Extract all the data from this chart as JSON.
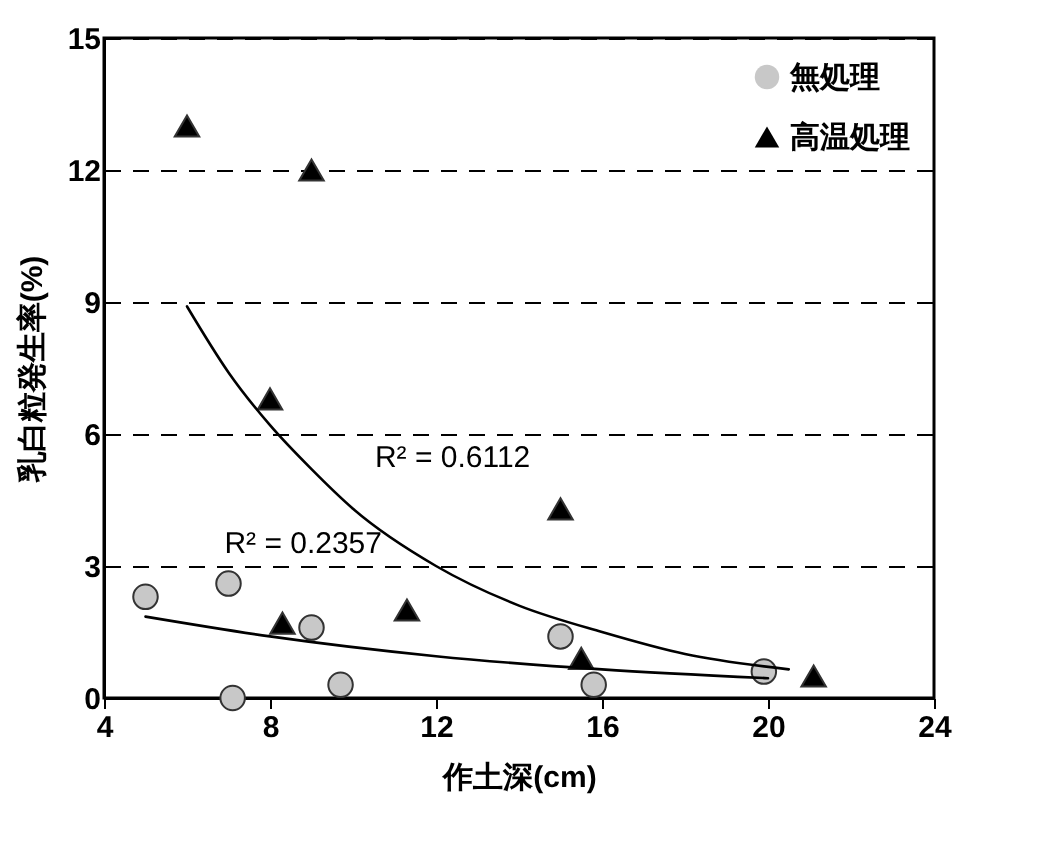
{
  "chart_data": {
    "type": "scatter",
    "xlabel": "作土深(cm)",
    "ylabel": "乳白粒発生率(%)",
    "xlim": [
      4,
      24
    ],
    "xticks": [
      4,
      8,
      12,
      16,
      20,
      24
    ],
    "ylim": [
      0,
      15
    ],
    "yticks": [
      0,
      3,
      6,
      9,
      12,
      15
    ],
    "grid": "y",
    "legend": "top right",
    "series": [
      {
        "name": "無処理",
        "color": "#c8c8c8",
        "marker": "circle",
        "x": [
          5.0,
          7.0,
          7.1,
          9.0,
          9.7,
          15.0,
          15.8,
          19.9
        ],
        "values": [
          2.3,
          2.6,
          0,
          1.6,
          0.3,
          1.4,
          0.3,
          0.6
        ]
      },
      {
        "name": "高温処理",
        "color": "#000000",
        "marker": "triangle",
        "x": [
          6.0,
          9.0,
          8.0,
          8.3,
          11.3,
          15.0,
          15.5,
          21.1
        ],
        "values": [
          13.0,
          12.0,
          6.8,
          1.7,
          2.0,
          4.3,
          0.9,
          0.5
        ]
      },
      {
        "type": "line",
        "color": "#000000",
        "x": [
          6,
          7,
          8,
          9,
          10,
          12,
          14,
          16,
          18,
          20.5
        ],
        "values": [
          8.9,
          7.4,
          6.2,
          5.2,
          4.3,
          3.0,
          2.1,
          1.5,
          1.0,
          0.65
        ]
      },
      {
        "type": "line",
        "color": "#000000",
        "x": [
          5,
          8,
          12,
          16,
          20
        ],
        "values": [
          1.85,
          1.4,
          0.95,
          0.65,
          0.45
        ]
      }
    ],
    "annotations": [
      "R² = 0.6112",
      "R² = 0.2357"
    ]
  }
}
